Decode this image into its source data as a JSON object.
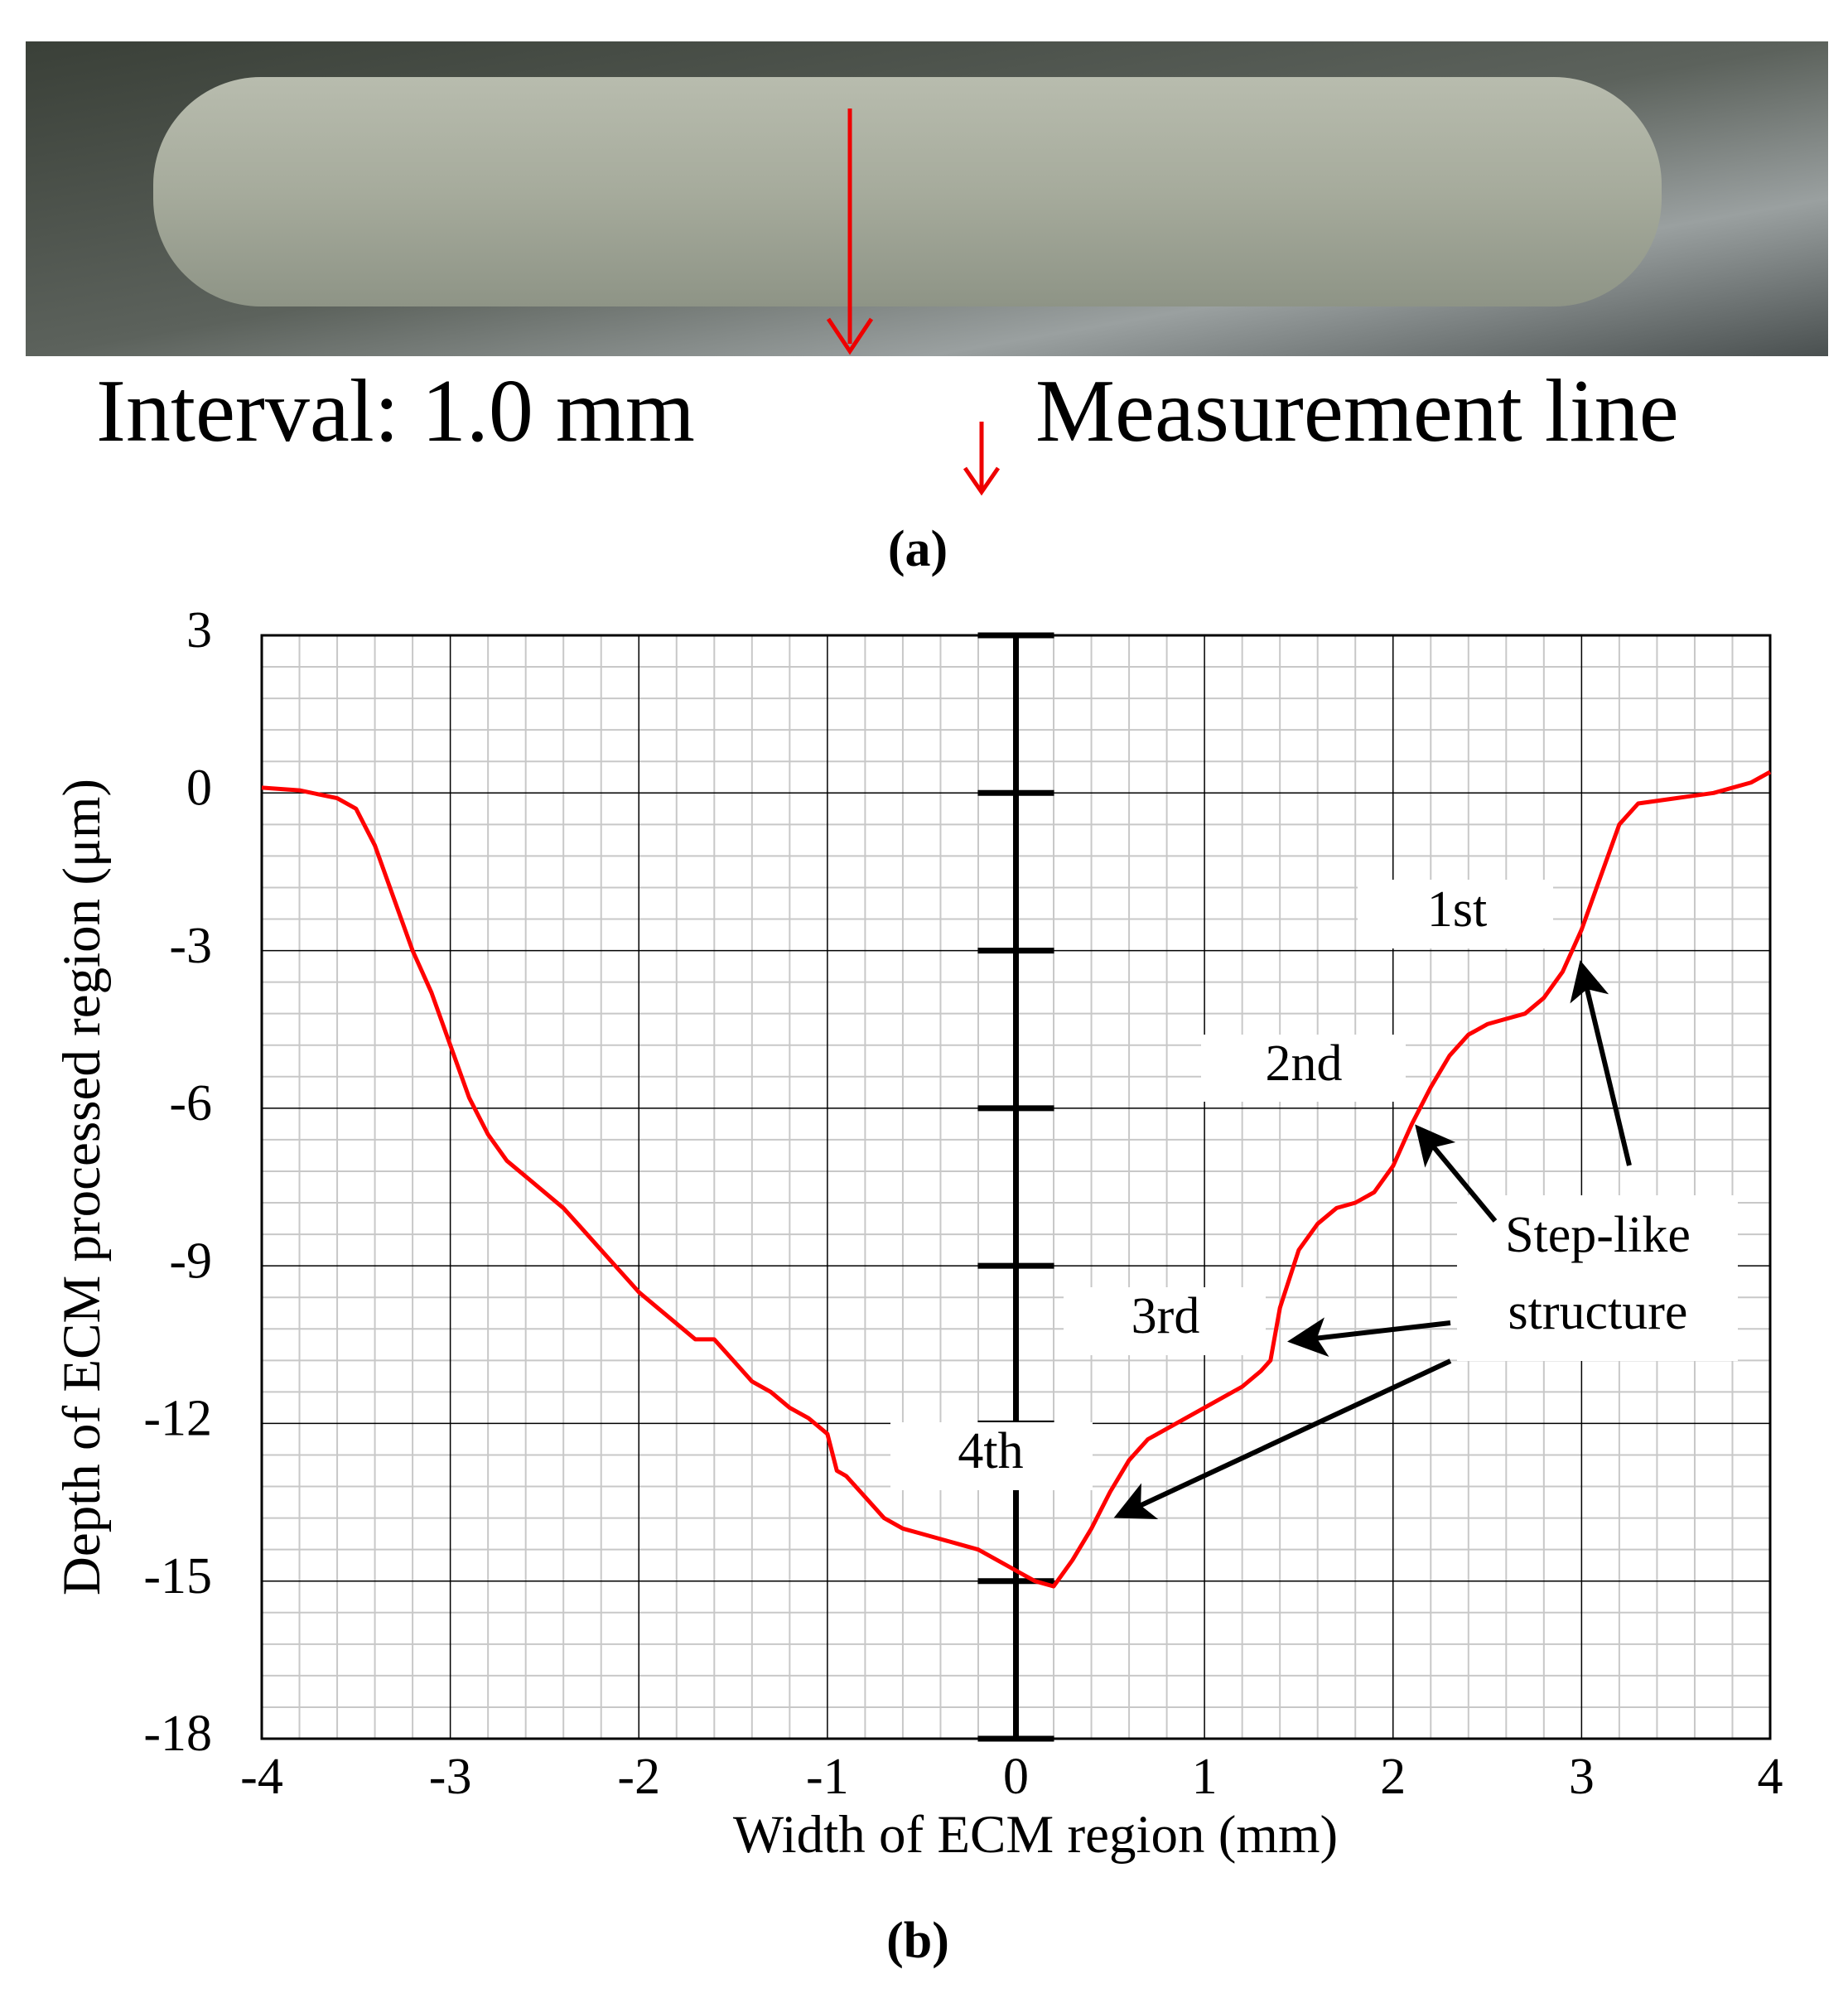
{
  "panel_a": {
    "interval": "Interval: 1.0 mm",
    "legend": "Measurement line",
    "caption": "(a)"
  },
  "chart_data": {
    "type": "line",
    "caption": "(b)",
    "xlabel": "Width of ECM region (mm)",
    "ylabel": "Depth of ECM processed region (μm)",
    "xlim": [
      -4,
      4
    ],
    "xticks": [
      -4,
      -3,
      -2,
      -1,
      0,
      1,
      2,
      3,
      4
    ],
    "ylim": [
      -18,
      3
    ],
    "yticks": [
      -18,
      -15,
      -12,
      -9,
      -6,
      -3,
      0,
      3
    ],
    "grid": true,
    "minor_divisions": 5,
    "annotations": [
      "1st",
      "2nd",
      "3rd",
      "4th"
    ],
    "callout": [
      "Step-like",
      "structure"
    ],
    "x": [
      -4.0,
      -3.8,
      -3.6,
      -3.5,
      -3.4,
      -3.3,
      -3.2,
      -3.1,
      -3.0,
      -2.9,
      -2.8,
      -2.7,
      -2.6,
      -2.5,
      -2.4,
      -2.3,
      -2.2,
      -2.1,
      -2.0,
      -1.9,
      -1.8,
      -1.7,
      -1.6,
      -1.5,
      -1.4,
      -1.3,
      -1.2,
      -1.1,
      -1.0,
      -0.95,
      -0.9,
      -0.8,
      -0.7,
      -0.6,
      -0.5,
      -0.4,
      -0.3,
      -0.2,
      -0.1,
      0.0,
      0.1,
      0.2,
      0.3,
      0.4,
      0.5,
      0.6,
      0.7,
      0.8,
      0.9,
      1.0,
      1.1,
      1.2,
      1.3,
      1.35,
      1.4,
      1.5,
      1.6,
      1.7,
      1.8,
      1.9,
      2.0,
      2.1,
      2.2,
      2.3,
      2.4,
      2.5,
      2.6,
      2.7,
      2.8,
      2.9,
      3.0,
      3.1,
      3.2,
      3.3,
      3.5,
      3.7,
      3.9,
      4.0
    ],
    "series": [
      {
        "color": "#ff0000",
        "values": [
          0.1,
          0.05,
          -0.1,
          -0.3,
          -1.0,
          -2.0,
          -3.0,
          -3.8,
          -4.8,
          -5.8,
          -6.5,
          -7.0,
          -7.3,
          -7.6,
          -7.9,
          -8.3,
          -8.7,
          -9.1,
          -9.5,
          -9.8,
          -10.1,
          -10.4,
          -10.4,
          -10.8,
          -11.2,
          -11.4,
          -11.7,
          -11.9,
          -12.2,
          -12.9,
          -13.0,
          -13.4,
          -13.8,
          -14.0,
          -14.1,
          -14.2,
          -14.3,
          -14.4,
          -14.6,
          -14.8,
          -15.0,
          -15.1,
          -14.6,
          -14.0,
          -13.3,
          -12.7,
          -12.3,
          -12.1,
          -11.9,
          -11.7,
          -11.5,
          -11.3,
          -11.0,
          -10.8,
          -9.8,
          -8.7,
          -8.2,
          -7.9,
          -7.8,
          -7.6,
          -7.1,
          -6.3,
          -5.6,
          -5.0,
          -4.6,
          -4.4,
          -4.3,
          -4.2,
          -3.9,
          -3.4,
          -2.6,
          -1.6,
          -0.6,
          -0.2,
          -0.1,
          0.0,
          0.2,
          0.4
        ]
      }
    ]
  }
}
